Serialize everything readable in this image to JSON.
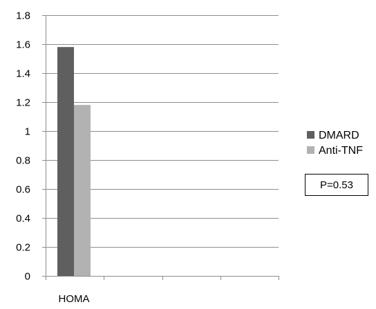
{
  "chart_data": {
    "type": "bar",
    "categories": [
      "HOMA"
    ],
    "series": [
      {
        "name": "DMARD",
        "values": [
          1.58
        ],
        "color": "#5f5f5f"
      },
      {
        "name": "Anti-TNF",
        "values": [
          1.18
        ],
        "color": "#b2b2b2"
      }
    ],
    "ylim": [
      0,
      1.8
    ],
    "yticks": [
      "0",
      "0.2",
      "0.4",
      "0.6",
      "0.8",
      "1",
      "1.2",
      "1.4",
      "1.6",
      "1.8"
    ],
    "x_slots": 4,
    "grid": true,
    "legend_position": "right",
    "annotation": "P=0.53"
  }
}
